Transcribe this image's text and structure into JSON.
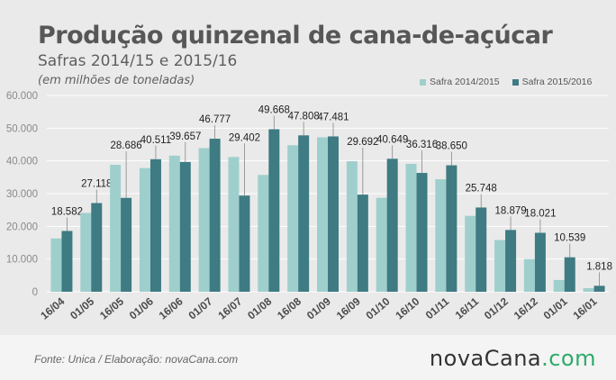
{
  "title": "Produção quinzenal de cana-de-açúcar",
  "subtitle": "Safras 2014/15 e 2015/16",
  "unit_note": "(em milhões de toneladas)",
  "source": "Fonte:  Unica  / Elaboração:  novaCana.com",
  "logo": {
    "main": "novaCana",
    "suffix": ".com"
  },
  "colors": {
    "safra_2014_15": "#9fcfcc",
    "safra_2015_16": "#3e7b83",
    "grid": "#ffffff",
    "background": "#eaeaea"
  },
  "chart_data": {
    "type": "bar",
    "title": "Produção quinzenal de cana-de-açúcar",
    "subtitle": "Safras 2014/15 e 2015/16",
    "ylabel": "(em milhões de toneladas)",
    "ylim": [
      0,
      60000
    ],
    "yticks": [
      0,
      10000,
      20000,
      30000,
      40000,
      50000,
      60000
    ],
    "ytick_labels": [
      "0",
      "10.000",
      "20.000",
      "30.000",
      "40.000",
      "50.000",
      "60.000"
    ],
    "grid": true,
    "legend_position": "top-right",
    "categories": [
      "16/04",
      "01/05",
      "16/05",
      "01/06",
      "16/06",
      "01/07",
      "16/07",
      "01/08",
      "16/08",
      "01/09",
      "16/09",
      "01/10",
      "16/10",
      "01/11",
      "16/11",
      "01/12",
      "16/12",
      "01/01",
      "16/01"
    ],
    "series": [
      {
        "name": "Safra 2014/2015",
        "values": [
          16300,
          24100,
          38800,
          37800,
          41600,
          43900,
          41200,
          35700,
          44800,
          47200,
          39900,
          28700,
          39100,
          34400,
          23200,
          15800,
          10000,
          3600,
          1100
        ]
      },
      {
        "name": "Safra 2015/2016",
        "values": [
          18582,
          27118,
          28686,
          40511,
          39657,
          46777,
          29402,
          49668,
          47808,
          47481,
          29692,
          40649,
          36316,
          38650,
          25748,
          18879,
          18021,
          10539,
          1818
        ]
      }
    ],
    "data_labels": [
      "18.582",
      "27.118",
      "28.686",
      "40.511",
      "39.657",
      "46.777",
      "29.402",
      "49.668",
      "47.808",
      "47.481",
      "29.692",
      "40.649",
      "36.316",
      "38.650",
      "25.748",
      "18.879",
      "18.021",
      "10.539",
      "1.818"
    ]
  }
}
